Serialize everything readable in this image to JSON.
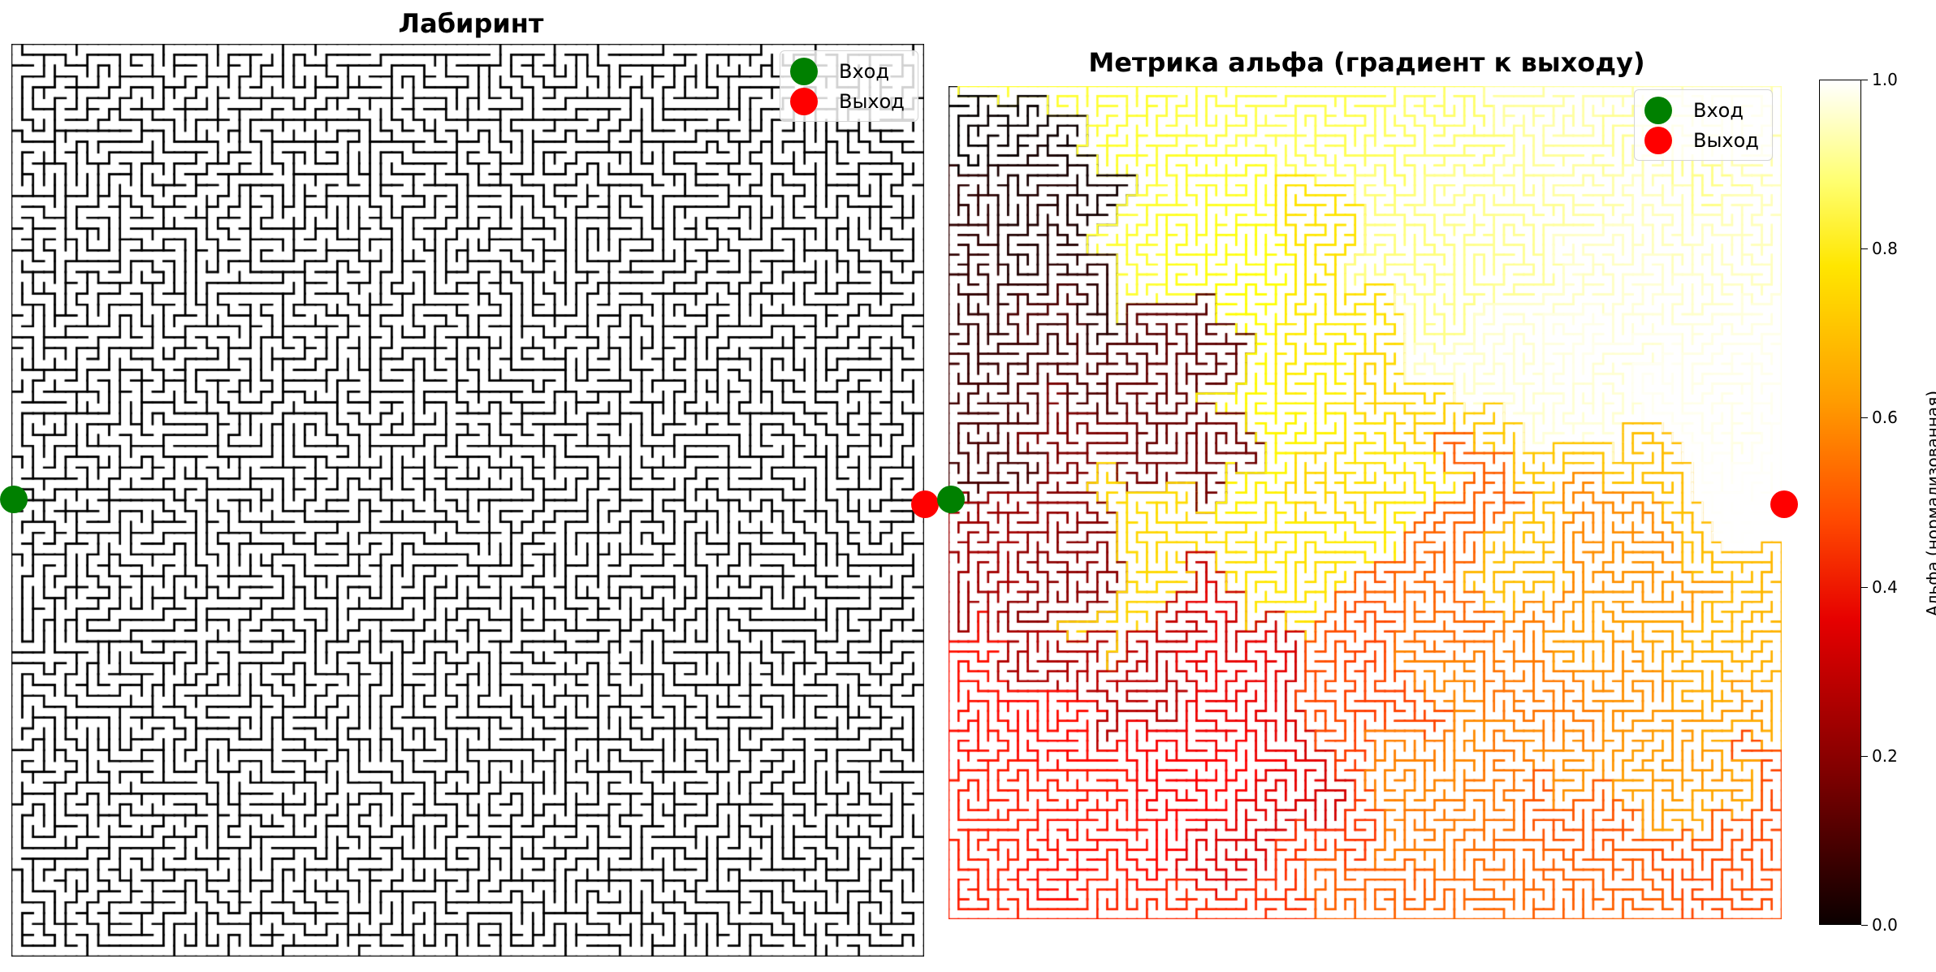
{
  "chart_data": [
    {
      "type": "maze",
      "title": "Лабиринт",
      "grid_size": [
        84,
        84
      ],
      "legend": [
        {
          "label": "Вход",
          "color": "#008000"
        },
        {
          "label": "Выход",
          "color": "#ff0000"
        }
      ],
      "legend_placement": "top-right",
      "entrance": {
        "row": 42,
        "col": 0
      },
      "exit": {
        "row": 42,
        "col": 83
      },
      "wall_color": "#000000",
      "passage_color": "#ffffff",
      "axes": "off"
    },
    {
      "type": "heatmap",
      "title": "Метрика альфа (градиент к выходу)",
      "colormap": "hot",
      "colorbar": {
        "label": "Альфа (нормализованная)",
        "range": [
          0.0,
          1.0
        ],
        "ticks": [
          "0.0",
          "0.2",
          "0.4",
          "0.6",
          "0.8",
          "1.0"
        ]
      },
      "legend": [
        {
          "label": "Вход",
          "color": "#008000"
        },
        {
          "label": "Выход",
          "color": "#ff0000"
        }
      ],
      "legend_placement": "top-right",
      "entrance": {
        "row": 42,
        "col": 0
      },
      "exit": {
        "row": 42,
        "col": 83
      },
      "axes": "off"
    }
  ]
}
